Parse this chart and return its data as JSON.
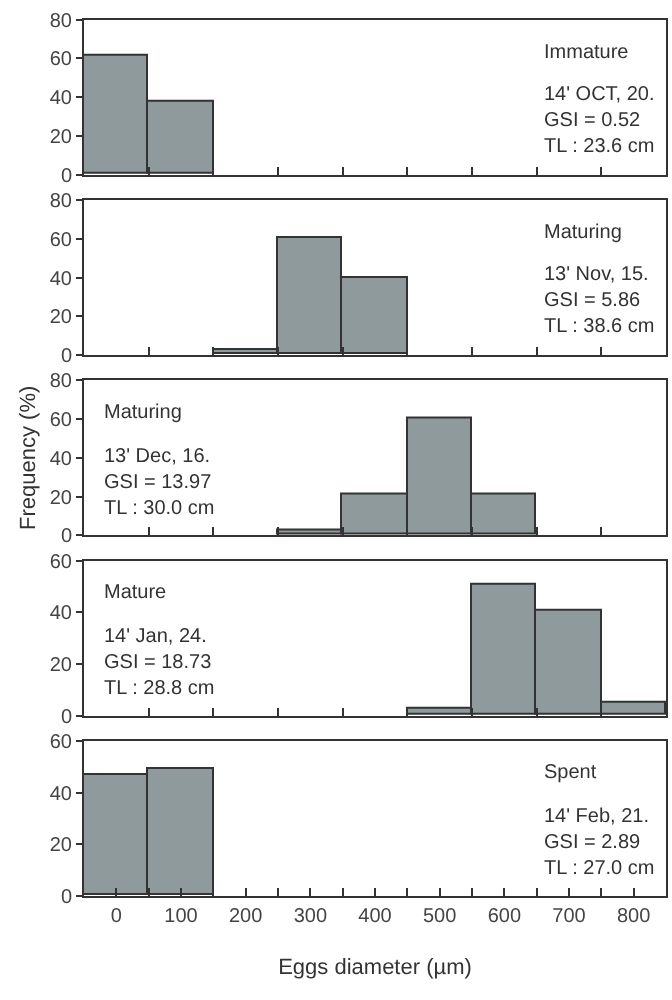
{
  "chart_data": [
    {
      "type": "histogram",
      "bins": [
        -50,
        50,
        150,
        250,
        350,
        450,
        550,
        650,
        750,
        850
      ],
      "values": [
        61,
        38,
        0,
        0,
        0,
        0,
        0,
        0,
        0
      ],
      "color": "#8e9a9b",
      "xlim": [
        -50,
        850
      ],
      "ylim": [
        0,
        80
      ],
      "yticks": [
        0,
        20,
        40,
        60,
        80
      ],
      "xticks": [
        {
          "value": 50,
          "label": null
        },
        {
          "value": 150,
          "label": null
        },
        {
          "value": 250,
          "label": null
        },
        {
          "value": 350,
          "label": null
        },
        {
          "value": 450,
          "label": null
        },
        {
          "value": 550,
          "label": null
        },
        {
          "value": 650,
          "label": null
        },
        {
          "value": 750,
          "label": null
        }
      ],
      "tick_labels": "y",
      "grid": false,
      "legend": false,
      "annotations": [
        "Immature",
        "14' OCT, 20.",
        "GSI = 0.52",
        "TL : 23.6 cm"
      ]
    },
    {
      "type": "histogram",
      "bins": [
        -50,
        50,
        150,
        250,
        350,
        450,
        550,
        650,
        750,
        850
      ],
      "values": [
        0,
        0,
        2,
        60,
        40,
        0,
        0,
        0,
        0
      ],
      "color": "#8e9a9b",
      "xlim": [
        -50,
        850
      ],
      "ylim": [
        0,
        80
      ],
      "yticks": [
        0,
        20,
        40,
        60,
        80
      ],
      "xticks": [
        {
          "value": 50,
          "label": null
        },
        {
          "value": 150,
          "label": null
        },
        {
          "value": 250,
          "label": null
        },
        {
          "value": 350,
          "label": null
        },
        {
          "value": 450,
          "label": null
        },
        {
          "value": 550,
          "label": null
        },
        {
          "value": 650,
          "label": null
        },
        {
          "value": 750,
          "label": null
        }
      ],
      "tick_labels": "y",
      "grid": false,
      "legend": false,
      "annotations": [
        "Maturing",
        "13' Nov, 15.",
        "GSI = 5.86",
        "TL : 38.6 cm"
      ]
    },
    {
      "type": "histogram",
      "bins": [
        -50,
        50,
        150,
        250,
        350,
        450,
        550,
        650,
        750,
        850
      ],
      "values": [
        0,
        0,
        0,
        2,
        21,
        60,
        21,
        0,
        0
      ],
      "color": "#8e9a9b",
      "xlim": [
        -50,
        850
      ],
      "ylim": [
        0,
        80
      ],
      "yticks": [
        0,
        20,
        40,
        60,
        80
      ],
      "xticks": [
        {
          "value": 50,
          "label": null
        },
        {
          "value": 150,
          "label": null
        },
        {
          "value": 250,
          "label": null
        },
        {
          "value": 350,
          "label": null
        },
        {
          "value": 450,
          "label": null
        },
        {
          "value": 550,
          "label": null
        },
        {
          "value": 650,
          "label": null
        },
        {
          "value": 750,
          "label": null
        }
      ],
      "tick_labels": "y",
      "grid": false,
      "legend": false,
      "ylabel": "Frequency (%)",
      "annotations": [
        "Maturing",
        "13' Dec, 16.",
        "GSI = 13.97",
        "TL : 30.0 cm"
      ]
    },
    {
      "type": "histogram",
      "bins": [
        -50,
        50,
        150,
        250,
        350,
        450,
        550,
        650,
        750,
        850
      ],
      "values": [
        0,
        0,
        0,
        0,
        0,
        3,
        51,
        41,
        5
      ],
      "color": "#8e9a9b",
      "xlim": [
        -50,
        850
      ],
      "ylim": [
        0,
        60
      ],
      "yticks": [
        0,
        20,
        40,
        60
      ],
      "xticks": [
        {
          "value": 50,
          "label": null
        },
        {
          "value": 150,
          "label": null
        },
        {
          "value": 250,
          "label": null
        },
        {
          "value": 350,
          "label": null
        },
        {
          "value": 450,
          "label": null
        },
        {
          "value": 550,
          "label": null
        },
        {
          "value": 650,
          "label": null
        },
        {
          "value": 750,
          "label": null
        }
      ],
      "tick_labels": "y",
      "grid": false,
      "legend": false,
      "annotations": [
        "Mature",
        "14' Jan, 24.",
        "GSI = 18.73",
        "TL : 28.8 cm"
      ]
    },
    {
      "type": "histogram",
      "bins": [
        -50,
        50,
        150,
        250,
        350,
        450,
        550,
        650,
        750,
        850
      ],
      "values": [
        47,
        49,
        0,
        0,
        0,
        0,
        0,
        0,
        0
      ],
      "color": "#8e9a9b",
      "xlim": [
        -50,
        850
      ],
      "ylim": [
        0,
        60
      ],
      "yticks": [
        0,
        20,
        40,
        60
      ],
      "xticks": [
        0,
        100,
        200,
        300,
        400,
        500,
        600,
        700,
        800,
        {
          "value": 50,
          "label": null
        },
        {
          "value": 150,
          "label": null
        },
        {
          "value": 250,
          "label": null
        },
        {
          "value": 350,
          "label": null
        },
        {
          "value": 450,
          "label": null
        },
        {
          "value": 550,
          "label": null
        },
        {
          "value": 650,
          "label": null
        },
        {
          "value": 750,
          "label": null
        }
      ],
      "grid": false,
      "legend": false,
      "xlabel": "Eggs diameter (µm)",
      "annotations": [
        "Spent",
        "14' Feb, 21.",
        "GSI = 2.89",
        "TL : 27.0 cm"
      ]
    }
  ]
}
